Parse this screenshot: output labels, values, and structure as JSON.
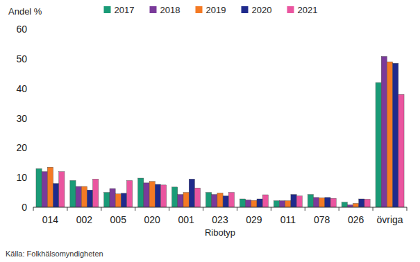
{
  "chart_data": {
    "type": "bar",
    "y_label": "Andel %",
    "x_label": "Ribotyp",
    "source": "Källa: Folkhälsomyndigheten",
    "categories": [
      "014",
      "002",
      "005",
      "020",
      "001",
      "023",
      "029",
      "011",
      "078",
      "026",
      "övriga"
    ],
    "series": [
      {
        "name": "2017",
        "color": "#1a9b77",
        "values": [
          13,
          9,
          5,
          9.8,
          6.8,
          5,
          2.8,
          2.2,
          4.3,
          1.7,
          42
        ]
      },
      {
        "name": "2018",
        "color": "#7a3a9a",
        "values": [
          12,
          7,
          6.3,
          8.2,
          4.3,
          4.3,
          2.5,
          2.2,
          3.3,
          0.8,
          50.8
        ]
      },
      {
        "name": "2019",
        "color": "#f47a24",
        "values": [
          13.5,
          7,
          4.5,
          8.7,
          5,
          4.8,
          2.3,
          2.2,
          3.2,
          1.3,
          49
        ]
      },
      {
        "name": "2020",
        "color": "#1f2a8c",
        "values": [
          8,
          5.8,
          4.7,
          7.7,
          9.5,
          3.8,
          2.8,
          4.3,
          3.3,
          2.8,
          48.5
        ]
      },
      {
        "name": "2021",
        "color": "#ea559f",
        "values": [
          12,
          9.5,
          9,
          7.5,
          6.5,
          5,
          4.2,
          3.8,
          3,
          2.7,
          38
        ]
      }
    ],
    "ylim": [
      0,
      60
    ],
    "yticks": [
      0,
      10,
      20,
      30,
      40,
      50,
      60
    ],
    "grid": false,
    "legend": "top"
  }
}
